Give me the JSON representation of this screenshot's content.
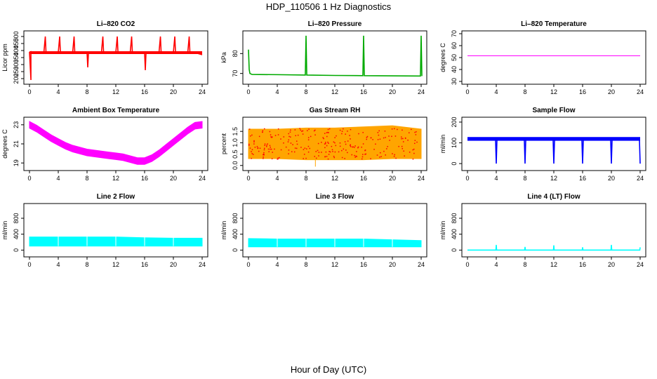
{
  "figure": {
    "title": "HDP_110506  1 Hz Diagnostics",
    "xlabel": "Hour of Day (UTC)"
  },
  "chart_data": [
    {
      "id": "co2",
      "type": "line",
      "title": "Li–820 CO2",
      "xlabel": "",
      "ylabel": "Licor ppm",
      "color": "#ff0000",
      "xlim": [
        0,
        24
      ],
      "ylim": [
        180,
        520
      ],
      "xticks": [
        "0",
        "4",
        "8",
        "12",
        "16",
        "20",
        "24"
      ],
      "yticks": [
        "200",
        "250",
        "300",
        "350",
        "400",
        "450",
        "500"
      ],
      "series": [
        {
          "x": [
            0,
            0.2,
            0.2,
            0.3,
            0.3,
            1,
            2,
            2.2,
            2.3,
            3,
            4,
            4.2,
            4.3,
            5,
            6,
            6.2,
            6.3,
            7,
            8,
            8.1,
            8.2,
            9,
            10,
            10.2,
            10.3,
            11,
            12,
            12.2,
            12.3,
            13,
            14,
            14.2,
            14.3,
            15,
            16,
            16.1,
            16.2,
            17,
            18,
            18.2,
            18.3,
            19,
            20,
            20.2,
            20.3,
            21,
            22,
            22.2,
            22.3,
            23,
            24
          ],
          "y": [
            390,
            190,
            395,
            385,
            385,
            385,
            385,
            500,
            385,
            385,
            385,
            500,
            385,
            385,
            385,
            500,
            385,
            385,
            385,
            280,
            385,
            385,
            385,
            500,
            385,
            385,
            385,
            500,
            385,
            385,
            385,
            500,
            385,
            385,
            385,
            260,
            385,
            385,
            385,
            500,
            385,
            385,
            385,
            500,
            385,
            385,
            385,
            500,
            385,
            385,
            370
          ]
        }
      ]
    },
    {
      "id": "pressure",
      "type": "line",
      "title": "Li–820 Pressure",
      "xlabel": "",
      "ylabel": "kPa",
      "color": "#00aa00",
      "xlim": [
        0,
        24
      ],
      "ylim": [
        66,
        90
      ],
      "xticks": [
        "0",
        "4",
        "8",
        "12",
        "16",
        "20",
        "24"
      ],
      "yticks": [
        "70",
        "80"
      ],
      "series": [
        {
          "x": [
            0,
            0.1,
            0.2,
            0.5,
            4,
            7.9,
            8,
            8.1,
            12,
            15.9,
            16,
            16.1,
            20,
            23.9,
            24,
            24.1
          ],
          "y": [
            82,
            72,
            70,
            69.5,
            69.4,
            69.2,
            89,
            69.2,
            69,
            68.9,
            89,
            68.9,
            68.8,
            68.7,
            89,
            68.7
          ]
        }
      ]
    },
    {
      "id": "temperature",
      "type": "line",
      "title": "Li–820 Temperature",
      "xlabel": "",
      "ylabel": "degrees C",
      "color": "#ff00ff",
      "xlim": [
        0,
        24
      ],
      "ylim": [
        30,
        70
      ],
      "xticks": [
        "0",
        "4",
        "8",
        "12",
        "16",
        "20",
        "24"
      ],
      "yticks": [
        "30",
        "40",
        "50",
        "60",
        "70"
      ],
      "series": [
        {
          "x": [
            0,
            24
          ],
          "y": [
            51.5,
            51.5
          ]
        }
      ]
    },
    {
      "id": "ambient",
      "type": "line",
      "title": "Ambient Box Temperature",
      "xlabel": "",
      "ylabel": "degrees C",
      "color": "#ff00ff",
      "xlim": [
        0,
        24
      ],
      "ylim": [
        18.5,
        23.5
      ],
      "xticks": [
        "0",
        "4",
        "8",
        "12",
        "16",
        "20",
        "24"
      ],
      "yticks": [
        "19",
        "21",
        "23"
      ],
      "band": 0.35,
      "series": [
        {
          "x": [
            0,
            1,
            2,
            3,
            4,
            5,
            6,
            7,
            8,
            9,
            10,
            11,
            12,
            13,
            14,
            15,
            16,
            17,
            18,
            19,
            20,
            21,
            22,
            23,
            24
          ],
          "y": [
            23,
            22.6,
            22.1,
            21.6,
            21.2,
            20.8,
            20.5,
            20.3,
            20.1,
            20,
            19.9,
            19.8,
            19.7,
            19.6,
            19.4,
            19.2,
            19.2,
            19.5,
            20,
            20.6,
            21.2,
            21.8,
            22.4,
            22.9,
            23
          ]
        }
      ]
    },
    {
      "id": "rh",
      "type": "scatter",
      "title": "Gas Stream RH",
      "xlabel": "",
      "ylabel": "percent",
      "color": "#ffa500",
      "color2": "#ff0000",
      "xlim": [
        0,
        24
      ],
      "ylim": [
        -0.1,
        2.0
      ],
      "xticks": [
        "0",
        "4",
        "8",
        "12",
        "16",
        "20",
        "24"
      ],
      "yticks": [
        "0.0",
        "0.5",
        "1.0",
        "1.5"
      ],
      "series": [
        {
          "x": [
            0,
            4,
            8,
            12,
            16,
            20,
            24
          ],
          "low": [
            0.3,
            0.3,
            0.25,
            0.25,
            0.25,
            0.3,
            0.3
          ],
          "high": [
            1.6,
            1.6,
            1.65,
            1.65,
            1.7,
            1.75,
            1.6
          ]
        }
      ]
    },
    {
      "id": "sample",
      "type": "line",
      "title": "Sample Flow",
      "xlabel": "",
      "ylabel": "ml/min",
      "color": "#0000ff",
      "xlim": [
        0,
        24
      ],
      "ylim": [
        -20,
        210
      ],
      "xticks": [
        "0",
        "4",
        "8",
        "12",
        "16",
        "20",
        "24"
      ],
      "yticks": [
        "0",
        "100",
        "200"
      ],
      "series": [
        {
          "x": [
            0,
            2,
            3.9,
            4,
            4.1,
            6,
            7.9,
            8,
            8.1,
            10,
            11.9,
            12,
            12.1,
            14,
            15.9,
            16,
            16.1,
            18,
            19.9,
            20,
            20.1,
            22,
            23.9,
            24
          ],
          "y": [
            120,
            118,
            118,
            0,
            118,
            116,
            116,
            0,
            116,
            116,
            116,
            0,
            116,
            116,
            116,
            0,
            116,
            116,
            116,
            0,
            116,
            116,
            116,
            0
          ]
        }
      ]
    },
    {
      "id": "line2",
      "type": "area",
      "title": "Line 2 Flow",
      "xlabel": "",
      "ylabel": "ml/min",
      "color": "#00ffff",
      "xlim": [
        0,
        24
      ],
      "ylim": [
        -100,
        1100
      ],
      "xticks": [
        "0",
        "4",
        "8",
        "12",
        "16",
        "20",
        "24"
      ],
      "yticks": [
        "0",
        "400",
        "800"
      ],
      "series": [
        {
          "x": [
            0,
            4,
            8,
            12,
            16,
            20,
            24
          ],
          "low": [
            100,
            100,
            100,
            100,
            100,
            100,
            100
          ],
          "high": [
            330,
            330,
            330,
            330,
            310,
            300,
            300
          ]
        }
      ]
    },
    {
      "id": "line3",
      "type": "area",
      "title": "Line 3 Flow",
      "xlabel": "",
      "ylabel": "ml/min",
      "color": "#00ffff",
      "xlim": [
        0,
        24
      ],
      "ylim": [
        -100,
        1100
      ],
      "xticks": [
        "0",
        "4",
        "8",
        "12",
        "16",
        "20",
        "24"
      ],
      "yticks": [
        "0",
        "400",
        "800"
      ],
      "series": [
        {
          "x": [
            0,
            4,
            8,
            12,
            16,
            20,
            24
          ],
          "low": [
            80,
            80,
            80,
            80,
            80,
            80,
            80
          ],
          "high": [
            290,
            280,
            280,
            280,
            280,
            260,
            240
          ]
        }
      ]
    },
    {
      "id": "line4",
      "type": "line",
      "title": "Line 4 (LT) Flow",
      "xlabel": "",
      "ylabel": "ml/min",
      "color": "#00ffff",
      "xlim": [
        0,
        24
      ],
      "ylim": [
        -100,
        1100
      ],
      "xticks": [
        "0",
        "4",
        "8",
        "12",
        "16",
        "20",
        "24"
      ],
      "yticks": [
        "0",
        "400",
        "800"
      ],
      "series": [
        {
          "x": [
            0,
            3.95,
            4,
            4.05,
            7.95,
            8,
            8.05,
            11.95,
            12,
            12.05,
            15.95,
            16,
            16.05,
            19.95,
            20,
            20.05,
            23.95,
            24
          ],
          "y": [
            0,
            0,
            130,
            0,
            0,
            80,
            0,
            0,
            120,
            0,
            0,
            70,
            0,
            0,
            130,
            0,
            0,
            70
          ]
        }
      ]
    }
  ]
}
